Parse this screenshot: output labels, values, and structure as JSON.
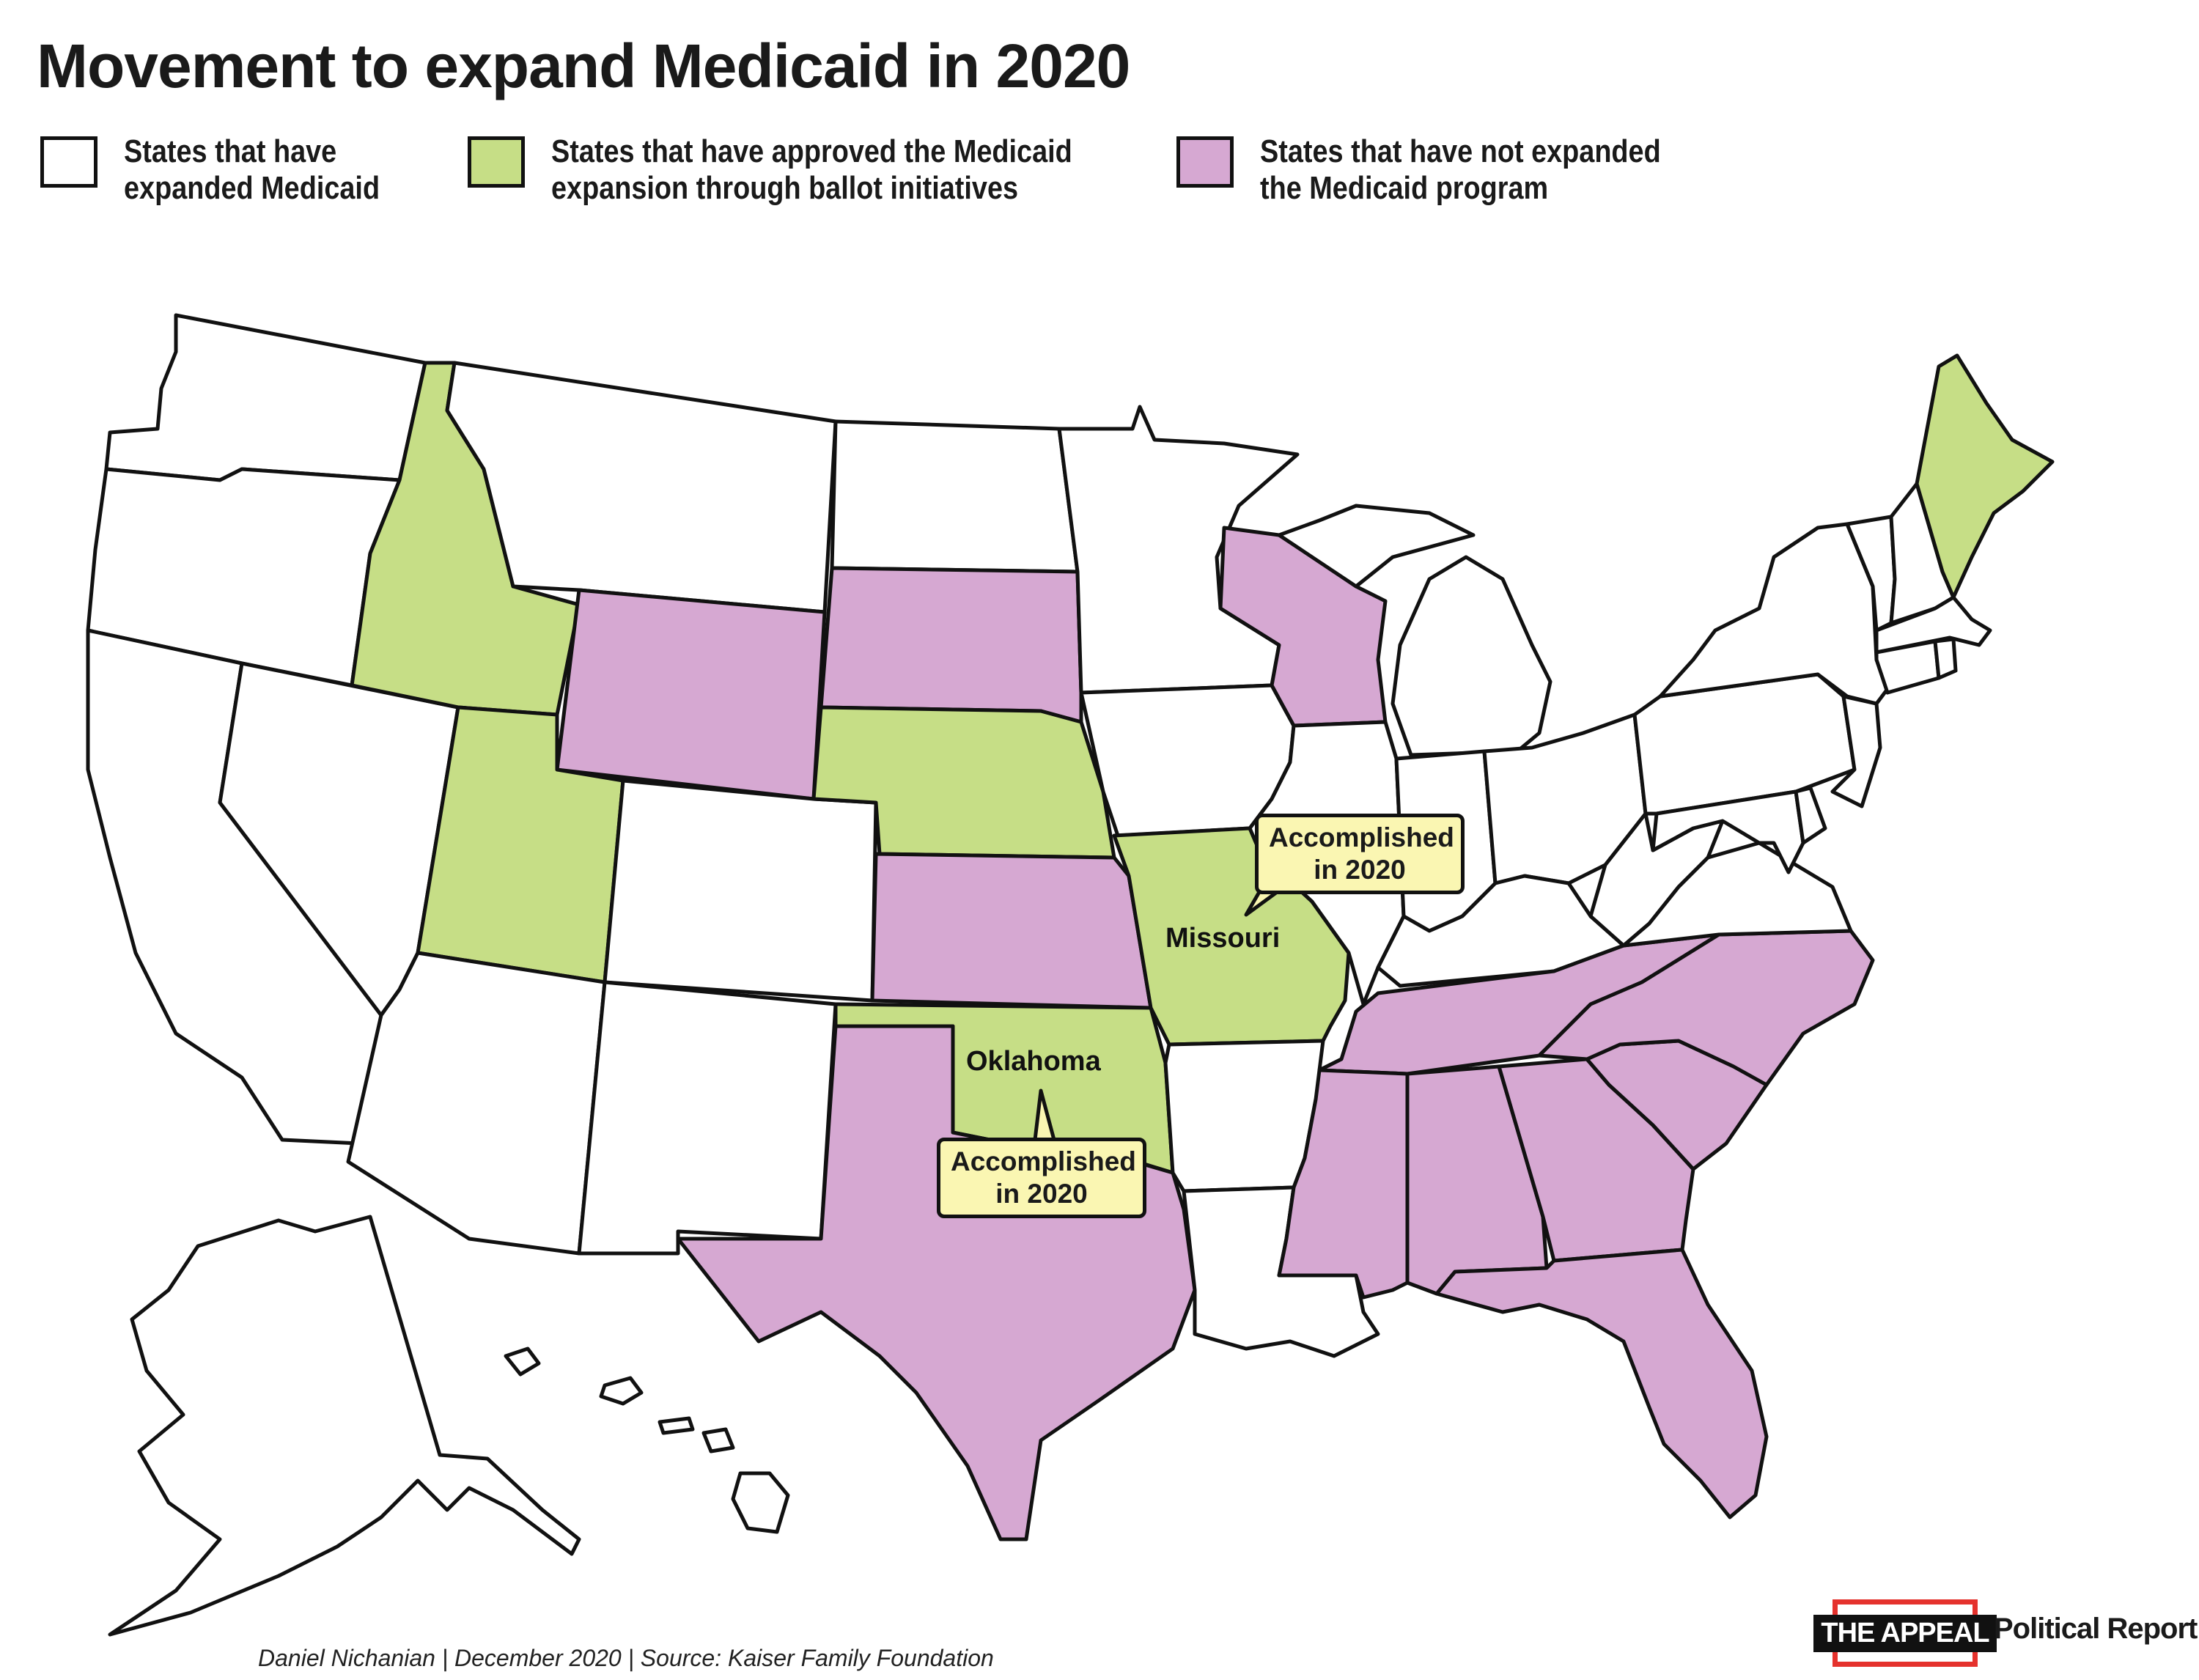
{
  "title": "Movement to expand Medicaid in 2020",
  "colors": {
    "expanded": "#ffffff",
    "ballot": "#c6de86",
    "not_expanded": "#d6a8d2",
    "callout": "#faf6b2",
    "outline": "#111111",
    "logo_red": "#e5322d"
  },
  "legend": [
    {
      "status": "expanded",
      "line1": "States that have",
      "line2": "expanded Medicaid"
    },
    {
      "status": "ballot",
      "line1": "States that have approved the Medicaid",
      "line2": "expansion through ballot initiatives"
    },
    {
      "status": "not_expanded",
      "line1": "States that have not expanded",
      "line2": "the Medicaid program"
    }
  ],
  "map": {
    "labels": {
      "missouri": "Missouri",
      "oklahoma": "Oklahoma"
    },
    "callouts": {
      "missouri": {
        "line1": "Accomplished",
        "line2": "in 2020"
      },
      "oklahoma": {
        "line1": "Accomplished",
        "line2": "in 2020"
      }
    },
    "states": {
      "ballot": [
        "ID",
        "UT",
        "NE",
        "MO",
        "OK",
        "ME"
      ],
      "not_expanded": [
        "WY",
        "SD",
        "KS",
        "WI",
        "TX",
        "MS",
        "AL",
        "TN",
        "GA",
        "SC",
        "NC",
        "FL"
      ]
    }
  },
  "footer": "Daniel Nichanian | December 2020 | Source: Kaiser Family Foundation",
  "logo": {
    "name": "THE APPEAL",
    "tagline": "Political Report."
  }
}
